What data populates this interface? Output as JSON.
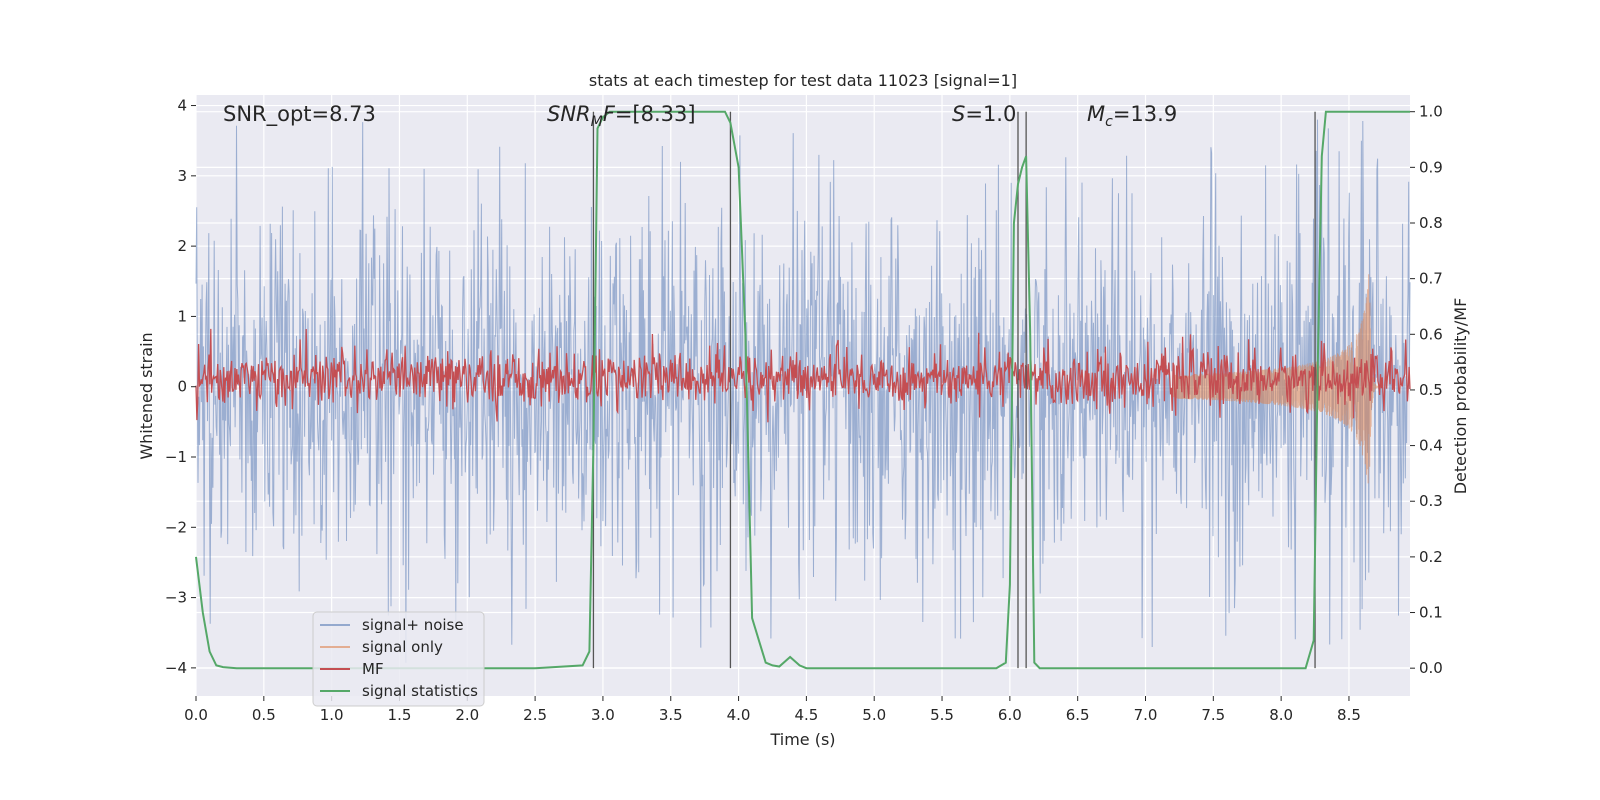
{
  "chart_data": {
    "type": "line",
    "title": "stats at each timestep for test data 11023 [signal=1]",
    "xlabel": "Time (s)",
    "ylabel": "Whitened strain",
    "ylabel_right": "Detection probability/MF",
    "xlim": [
      0,
      8.95
    ],
    "ylim": [
      -4.4,
      4.15
    ],
    "ylim_right": [
      -0.05,
      1.03
    ],
    "grid": true,
    "legend_placement": "lower-left",
    "x_ticks": [
      0.0,
      0.5,
      1.0,
      1.5,
      2.0,
      2.5,
      3.0,
      3.5,
      4.0,
      4.5,
      5.0,
      5.5,
      6.0,
      6.5,
      7.0,
      7.5,
      8.0,
      8.5
    ],
    "x_tick_labels": [
      "0.0",
      "0.5",
      "1.0",
      "1.5",
      "2.0",
      "2.5",
      "3.0",
      "3.5",
      "4.0",
      "4.5",
      "5.0",
      "5.5",
      "6.0",
      "6.5",
      "7.0",
      "7.5",
      "8.0",
      "8.5"
    ],
    "y_ticks": [
      -4,
      -3,
      -2,
      -1,
      0,
      1,
      2,
      3,
      4
    ],
    "y_tick_labels": [
      "−4",
      "−3",
      "−2",
      "−1",
      "0",
      "1",
      "2",
      "3",
      "4"
    ],
    "y_ticks_right": [
      0.0,
      0.1,
      0.2,
      0.3,
      0.4,
      0.5,
      0.6,
      0.7,
      0.8,
      0.9,
      1.0
    ],
    "y_tick_labels_right": [
      "0.0",
      "0.1",
      "0.2",
      "0.3",
      "0.4",
      "0.5",
      "0.6",
      "0.7",
      "0.8",
      "0.9",
      "1.0"
    ],
    "annotations": [
      {
        "id": "snr-opt",
        "text": "SNR_opt=8.73",
        "x": 0.2
      },
      {
        "id": "snr-mf",
        "text_italic": "SNR",
        "text_sub": "M",
        "text_italic2": "F",
        "text_plain": "=[8.33]",
        "x": 2.6
      },
      {
        "id": "s-value",
        "text_italic": "S",
        "text_plain": "=1.0",
        "x": 5.6
      },
      {
        "id": "mc-value",
        "text_italic": "M",
        "text_sub": "c",
        "text_plain": "=13.9",
        "x": 6.6
      }
    ],
    "vertical_lines_x": [
      2.93,
      3.94,
      6.06,
      6.12,
      8.25
    ],
    "series": [
      {
        "name": "signal+ noise",
        "color": "#4c72b0",
        "axis": "left",
        "kind": "noise-band",
        "typical_amplitude": 1.5,
        "peak_amplitude": 3.8,
        "min_value": -4.0
      },
      {
        "name": "signal only",
        "color": "#dd8452",
        "axis": "left",
        "kind": "chirp",
        "start_x": 7.2,
        "peak_x": 8.65,
        "end_x": 8.72,
        "peak_amplitude": 1.75
      },
      {
        "name": "MF",
        "color": "#c44e52",
        "axis": "right",
        "kind": "noise-line",
        "mean": 0.52,
        "spread": 0.025
      },
      {
        "name": "signal statistics",
        "color": "#55a868",
        "axis": "right",
        "x": [
          0.0,
          0.05,
          0.1,
          0.15,
          0.2,
          0.3,
          0.5,
          1.0,
          1.5,
          2.0,
          2.5,
          2.85,
          2.9,
          2.93,
          2.96,
          3.0,
          3.05,
          3.5,
          3.9,
          3.94,
          3.97,
          4.0,
          4.05,
          4.1,
          4.15,
          4.2,
          4.25,
          4.3,
          4.38,
          4.45,
          4.5,
          5.0,
          5.5,
          5.9,
          5.97,
          6.0,
          6.03,
          6.06,
          6.09,
          6.12,
          6.15,
          6.18,
          6.22,
          6.3,
          7.0,
          7.5,
          8.0,
          8.18,
          8.24,
          8.27,
          8.3,
          8.33,
          8.4,
          8.95
        ],
        "values": [
          0.2,
          0.1,
          0.03,
          0.005,
          0.002,
          0.0,
          0.0,
          0.0,
          0.0,
          0.0,
          0.0,
          0.005,
          0.03,
          0.4,
          0.97,
          0.99,
          1.0,
          1.0,
          1.0,
          0.98,
          0.94,
          0.9,
          0.6,
          0.09,
          0.05,
          0.01,
          0.005,
          0.003,
          0.02,
          0.005,
          0.0,
          0.0,
          0.0,
          0.0,
          0.01,
          0.15,
          0.8,
          0.87,
          0.9,
          0.92,
          0.6,
          0.01,
          0.0,
          0.0,
          0.0,
          0.0,
          0.0,
          0.0,
          0.05,
          0.55,
          0.92,
          1.0,
          1.0,
          1.0
        ]
      }
    ]
  }
}
